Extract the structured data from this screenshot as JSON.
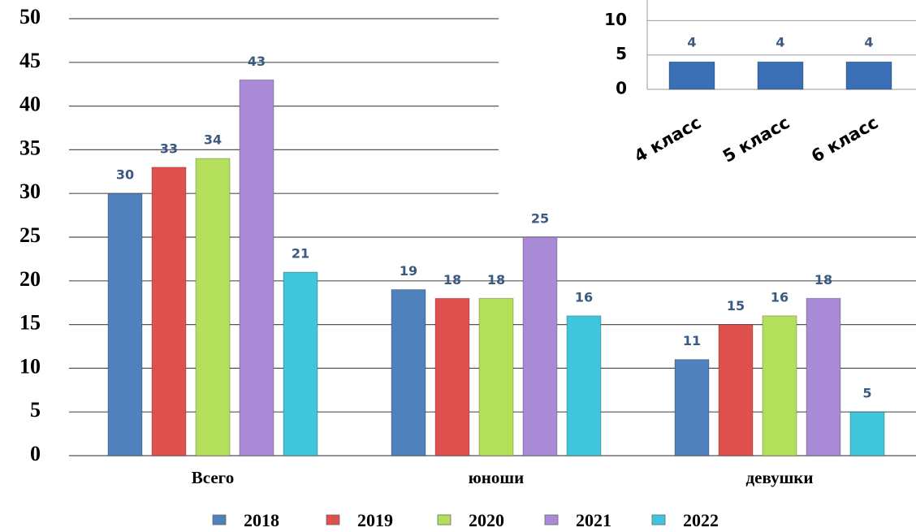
{
  "chart_data": [
    {
      "type": "bar",
      "categories": [
        "Всего",
        "юноши",
        "девушки"
      ],
      "series": [
        {
          "name": "2018",
          "color": "#4f81bd",
          "values": [
            30,
            19,
            11
          ]
        },
        {
          "name": "2019",
          "color": "#e0504f",
          "values": [
            33,
            18,
            15
          ]
        },
        {
          "name": "2020",
          "color": "#b3df5a",
          "values": [
            34,
            18,
            16
          ]
        },
        {
          "name": "2021",
          "color": "#a98ad6",
          "values": [
            43,
            25,
            18
          ]
        },
        {
          "name": "2022",
          "color": "#3fc6dc",
          "values": [
            21,
            16,
            5
          ]
        }
      ],
      "ylim": [
        0,
        50
      ],
      "yticks": [
        0,
        5,
        10,
        15,
        20,
        25,
        30,
        35,
        40,
        45,
        50
      ],
      "grid": true,
      "legend": "bottom"
    },
    {
      "type": "bar",
      "categories": [
        "4 класс",
        "5 класс",
        "6 класс"
      ],
      "values": [
        4,
        4,
        4
      ],
      "color": "#3a6fb5",
      "ylim": [
        0,
        13
      ],
      "yticks": [
        0,
        5,
        10
      ],
      "grid": true
    }
  ]
}
